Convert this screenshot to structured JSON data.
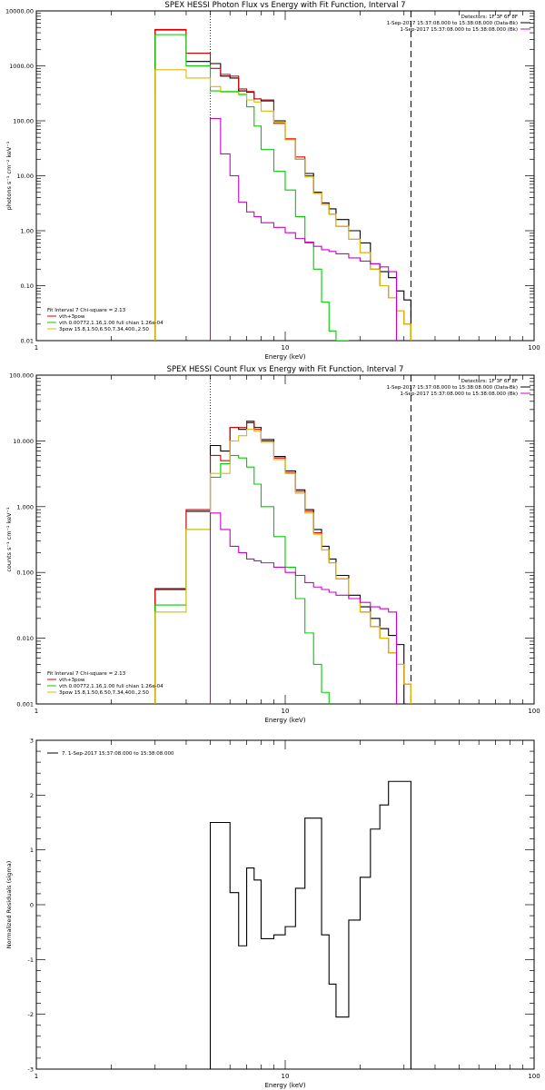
{
  "chart_data": [
    {
      "type": "line",
      "title": "SPEX HESSI Photon Flux vs Energy with Fit Function, Interval 7",
      "xlabel": "Energy (keV)",
      "ylabel": "photons s⁻¹ cm⁻² keV⁻¹",
      "x_scale": "log",
      "y_scale": "log",
      "xlim": [
        1,
        100
      ],
      "ylim": [
        0.01,
        10000
      ],
      "x_ticks": [
        "1",
        "10",
        "100"
      ],
      "y_ticks": [
        "0.01",
        "0.10",
        "1.00",
        "10.00",
        "100.00",
        "1000.00",
        "10000.00"
      ],
      "grid": false,
      "info_lines": [
        "Detectors: 1F 3F 6F 8F",
        "1-Sep-2017 15:37:08.000 to 15:38:08.000 (Data-Bk)",
        "1-Sep-2017 15:37:08.000 to 15:38:08.000 (Bk)"
      ],
      "info_colors": [
        "#000000",
        "#cc00cc"
      ],
      "legend_title": "Fit Interval 7   Chi-square = 2.13",
      "bin_edges": [
        3,
        4,
        5,
        5.5,
        6,
        6.5,
        7,
        7.5,
        8,
        9,
        10,
        11,
        12,
        13,
        14,
        15,
        16,
        18,
        20,
        22,
        24,
        26,
        28,
        30,
        32
      ],
      "dotted_line_x": 5,
      "dashed_line_x": 32,
      "series": [
        {
          "name": "Data-Bk",
          "color": "#000000",
          "start_bin": 0,
          "values": [
            4500,
            1200,
            1100,
            650,
            600,
            350,
            330,
            250,
            230,
            100,
            45,
            20,
            11,
            5,
            3.2,
            2.5,
            1.6,
            1.0,
            0.6,
            0.25,
            0.18,
            0.14,
            0.08,
            0.055
          ]
        },
        {
          "name": "vth+3pow",
          "color": "#dd0000",
          "start_bin": 0,
          "values": [
            4600,
            1700,
            900,
            700,
            650,
            380,
            340,
            250,
            240,
            90,
            47,
            22,
            10,
            4.8,
            3.0,
            2.0,
            1.2,
            0.7,
            0.4,
            0.2,
            0.1,
            0.06,
            0.035,
            0.02
          ]
        },
        {
          "name": "vth 0.00772,1.16,1.00  full chian 1.26e-04",
          "color": "#00cc00",
          "start_bin": 0,
          "values": [
            3700,
            1000,
            350,
            340,
            340,
            300,
            180,
            80,
            30,
            12,
            5.5,
            1.8,
            0.6,
            0.2,
            0.05,
            0.015,
            0.005
          ]
        },
        {
          "name": "3pow 15.8,1.50,6.50,7.34,400.,2.50",
          "color": "#ddbb00",
          "start_bin": 0,
          "values": [
            850,
            600,
            420,
            330,
            330,
            310,
            240,
            220,
            150,
            95,
            45,
            20,
            9.5,
            4.8,
            3.0,
            2.0,
            1.2,
            0.7,
            0.4,
            0.2,
            0.1,
            0.06,
            0.035,
            0.02
          ]
        },
        {
          "name": "Bk",
          "color": "#cc00cc",
          "start_bin": 2,
          "values": [
            110,
            25,
            10,
            3.3,
            2.2,
            1.8,
            1.4,
            1.15,
            0.92,
            0.72,
            0.62,
            0.52,
            0.45,
            0.42,
            0.38,
            0.32,
            0.28,
            0.25,
            0.22,
            0.18
          ]
        }
      ]
    },
    {
      "type": "line",
      "title": "SPEX HESSI Count Flux vs Energy with Fit Function, Interval 7",
      "xlabel": "Energy (keV)",
      "ylabel": "counts s⁻¹ cm⁻² keV⁻¹",
      "x_scale": "log",
      "y_scale": "log",
      "xlim": [
        1,
        100
      ],
      "ylim": [
        0.001,
        100
      ],
      "x_ticks": [
        "1",
        "10",
        "100"
      ],
      "y_ticks": [
        "0.001",
        "0.010",
        "0.100",
        "1.000",
        "10.000",
        "100.000"
      ],
      "grid": false,
      "info_lines": [
        "Detectors: 1F 3F 6F 8F",
        "1-Sep-2017 15:37:08.000 to 15:38:08.000 (Data-Bk)",
        "1-Sep-2017 15:37:08.000 to 15:38:08.000 (Bk)"
      ],
      "info_colors": [
        "#000000",
        "#cc00cc"
      ],
      "legend_title": "Fit Interval 7   Chi-square = 2.13",
      "bin_edges": [
        3,
        4,
        5,
        5.5,
        6,
        6.5,
        7,
        7.5,
        8,
        9,
        10,
        11,
        12,
        13,
        14,
        15,
        16,
        18,
        20,
        22,
        24,
        26,
        28,
        30,
        32
      ],
      "dotted_line_x": 5,
      "dashed_line_x": 32,
      "series": [
        {
          "name": "Data-Bk",
          "color": "#000000",
          "start_bin": 0,
          "values": [
            0.055,
            0.85,
            8.5,
            7.0,
            16,
            15,
            19,
            16,
            10.5,
            5.8,
            3.5,
            1.8,
            0.9,
            0.45,
            0.25,
            0.16,
            0.09,
            0.045,
            0.03,
            0.02,
            0.014,
            0.011,
            0.008
          ]
        },
        {
          "name": "vth+3pow",
          "color": "#dd0000",
          "start_bin": 0,
          "values": [
            0.057,
            0.9,
            6.0,
            5.0,
            16,
            16,
            20,
            15,
            10,
            5.5,
            3.3,
            1.7,
            0.85,
            0.4,
            0.22,
            0.14,
            0.08,
            0.04,
            0.025,
            0.015,
            0.01,
            0.006,
            0.004,
            0.002
          ]
        },
        {
          "name": "vth 0.00772,1.16,1.00  full chian 1.26e-04",
          "color": "#00cc00",
          "start_bin": 0,
          "values": [
            0.032,
            0.45,
            2.8,
            4.5,
            6.0,
            5.5,
            4.0,
            2.2,
            1.0,
            0.35,
            0.12,
            0.04,
            0.012,
            0.004,
            0.0015
          ]
        },
        {
          "name": "3pow 15.8,1.50,6.50,7.34,400.,2.50",
          "color": "#ddbb00",
          "start_bin": 0,
          "values": [
            0.025,
            0.45,
            3.2,
            3.2,
            10,
            12,
            15,
            14,
            9.5,
            5.2,
            3.2,
            1.6,
            0.8,
            0.38,
            0.22,
            0.14,
            0.08,
            0.04,
            0.025,
            0.015,
            0.01,
            0.006,
            0.004,
            0.002
          ]
        },
        {
          "name": "Bk",
          "color": "#cc00cc",
          "start_bin": 2,
          "values": [
            0.8,
            0.45,
            0.25,
            0.2,
            0.16,
            0.15,
            0.14,
            0.12,
            0.1,
            0.09,
            0.07,
            0.06,
            0.055,
            0.05,
            0.045,
            0.04,
            0.035,
            0.03,
            0.028,
            0.025
          ]
        }
      ]
    },
    {
      "type": "line",
      "title": "",
      "xlabel": "Energy (keV)",
      "ylabel": "Normalized Residuals (sigma)",
      "x_scale": "log",
      "y_scale": "linear",
      "xlim": [
        1,
        100
      ],
      "ylim": [
        -3,
        3
      ],
      "x_ticks": [
        "1",
        "10",
        "100"
      ],
      "y_ticks": [
        "-3",
        "-2",
        "-1",
        "0",
        "1",
        "2",
        "3"
      ],
      "grid": false,
      "legend_entry": "7. 1-Sep-2017 15:37:08.000 to 15:38:08.000",
      "bin_edges": [
        5,
        5.5,
        6,
        6.5,
        7,
        7.5,
        8,
        9,
        10,
        11,
        12,
        13,
        14,
        15,
        16,
        18,
        20,
        22,
        24,
        26,
        28,
        30,
        32
      ],
      "series": [
        {
          "name": "7. 1-Sep-2017 15:37:08.000 to 15:38:08.000",
          "color": "#000000",
          "start_bin": 0,
          "values": [
            1.5,
            1.5,
            0.22,
            -0.75,
            0.67,
            0.45,
            -0.62,
            -0.55,
            -0.4,
            0.3,
            1.58,
            1.58,
            -0.55,
            -1.45,
            -2.05,
            -0.28,
            0.5,
            1.38,
            1.82,
            2.25,
            2.25,
            2.25
          ]
        }
      ]
    }
  ]
}
